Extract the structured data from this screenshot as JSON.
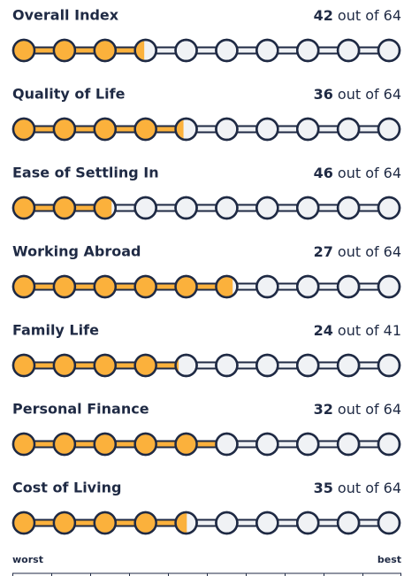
{
  "out_of": "out of",
  "scale": {
    "worst": "worst",
    "best": "best"
  },
  "rows": [
    {
      "title": "Overall Index",
      "rank": 42,
      "total": 64
    },
    {
      "title": "Quality of Life",
      "rank": 36,
      "total": 64
    },
    {
      "title": "Ease of Settling In",
      "rank": 46,
      "total": 64
    },
    {
      "title": "Working Abroad",
      "rank": 27,
      "total": 64
    },
    {
      "title": "Family Life",
      "rank": 24,
      "total": 41
    },
    {
      "title": "Personal Finance",
      "rank": 32,
      "total": 64
    },
    {
      "title": "Cost of Living",
      "rank": 35,
      "total": 64
    }
  ]
}
